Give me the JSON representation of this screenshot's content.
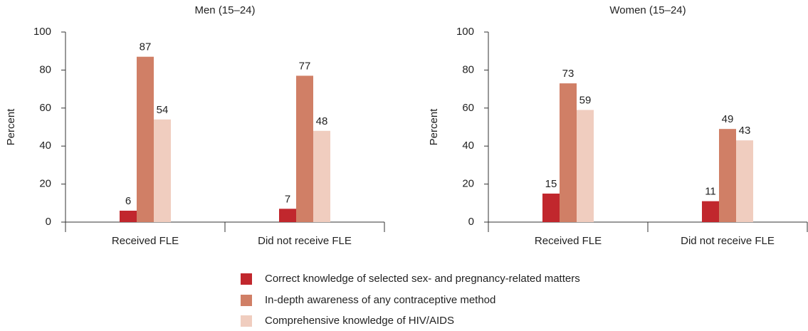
{
  "chart_data": [
    {
      "type": "bar",
      "title": "Men (15–24)",
      "ylabel": "Percent",
      "categories": [
        "Received FLE",
        "Did not receive FLE"
      ],
      "series": [
        {
          "values": [
            6,
            7
          ]
        },
        {
          "values": [
            87,
            77
          ]
        },
        {
          "values": [
            54,
            48
          ]
        }
      ],
      "ylim": [
        0,
        100
      ],
      "yticks": [
        0,
        20,
        40,
        60,
        80,
        100
      ]
    },
    {
      "type": "bar",
      "title": "Women (15–24)",
      "ylabel": "Percent",
      "categories": [
        "Received FLE",
        "Did not receive FLE"
      ],
      "series": [
        {
          "values": [
            15,
            11
          ]
        },
        {
          "values": [
            73,
            49
          ]
        },
        {
          "values": [
            59,
            43
          ]
        }
      ],
      "ylim": [
        0,
        100
      ],
      "yticks": [
        0,
        20,
        40,
        60,
        80,
        100
      ]
    }
  ],
  "legend": [
    {
      "name": "Correct knowledge of selected sex- and pregnancy-related matters",
      "color": "#c1272d"
    },
    {
      "name": "In-depth awareness of any contraceptive method",
      "color": "#d07f66"
    },
    {
      "name": "Comprehensive knowledge of HIV/AIDS",
      "color": "#f0cdbf"
    }
  ]
}
